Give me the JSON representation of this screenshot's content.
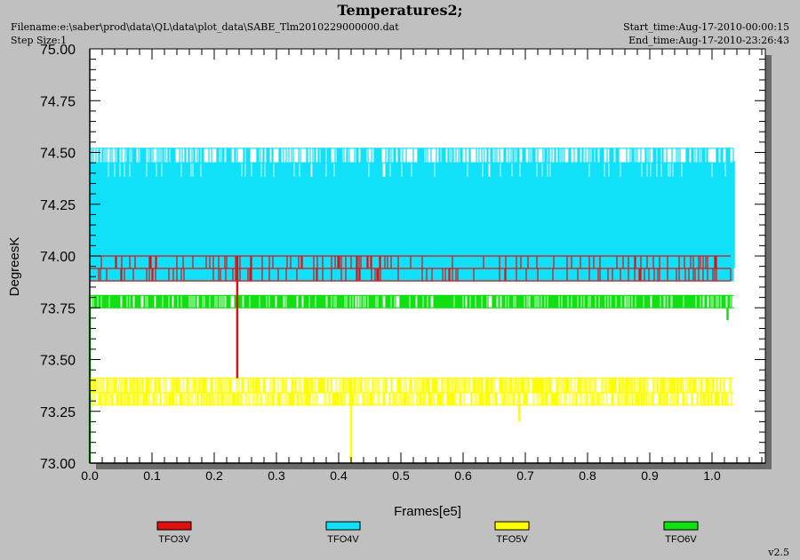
{
  "header": {
    "title": "Temperatures2;",
    "filename": "Filename:e:\\saber\\prod\\data\\QL\\data\\plot_data\\SABE_Tlm2010229000000.dat",
    "step_size": "Step Size:1",
    "start_time": "Start_time:Aug-17-2010-00:00:15",
    "end_time": "End_time:Aug-17-2010-23:26:43",
    "version": "v2.5"
  },
  "chart_data": {
    "type": "line",
    "title": "Temperatures2;",
    "xlabel": "Frames[e5]",
    "ylabel": "DegreesK",
    "xlim": [
      0,
      1.09
    ],
    "ylim": [
      73.0,
      75.0
    ],
    "x_ticks": [
      "0.0",
      "0.1",
      "0.2",
      "0.3",
      "0.4",
      "0.5",
      "0.6",
      "0.7",
      "0.8",
      "0.9",
      "1.0"
    ],
    "x_tick_values": [
      0.0,
      0.1,
      0.2,
      0.3,
      0.4,
      0.5,
      0.6,
      0.7,
      0.8,
      0.9,
      1.0
    ],
    "y_ticks": [
      "73.00",
      "73.25",
      "73.50",
      "73.75",
      "74.00",
      "74.25",
      "74.50",
      "74.75",
      "75.00"
    ],
    "y_tick_values": [
      73.0,
      73.25,
      73.5,
      73.75,
      74.0,
      74.25,
      74.5,
      74.75,
      75.0
    ],
    "legend_position": "bottom",
    "grid": false,
    "series": [
      {
        "name": "TFO3V",
        "color": "#e01010",
        "x_range": [
          0.0,
          1.03
        ],
        "levels": [
          73.88,
          73.94,
          74.0
        ],
        "spikes": [
          {
            "x": 0.237,
            "low": 73.41,
            "high": 74.0
          }
        ]
      },
      {
        "name": "TFO4V",
        "color": "#10e0f8",
        "x_range": [
          0.0,
          1.035
        ],
        "levels": [
          73.88,
          73.94,
          74.0,
          74.06,
          74.13,
          74.19,
          74.25,
          74.31,
          74.38,
          74.45,
          74.52
        ],
        "spikes": [
          {
            "x": 1.035,
            "low": 73.94,
            "high": 74.46
          }
        ]
      },
      {
        "name": "TFO5V",
        "color": "#ffff00",
        "x_range": [
          0.0,
          1.035
        ],
        "levels": [
          73.28,
          73.34,
          73.41
        ],
        "spikes": [
          {
            "x": 0.42,
            "low": 73.0,
            "high": 73.34
          },
          {
            "x": 0.69,
            "low": 73.2,
            "high": 73.34
          }
        ]
      },
      {
        "name": "TFO6V",
        "color": "#10e010",
        "x_range": [
          0.0,
          1.035
        ],
        "levels": [
          73.75,
          73.81
        ],
        "spikes": [
          {
            "x": 0.0,
            "low": 73.0,
            "high": 73.81
          },
          {
            "x": 1.025,
            "low": 73.69,
            "high": 73.75
          }
        ]
      }
    ]
  }
}
